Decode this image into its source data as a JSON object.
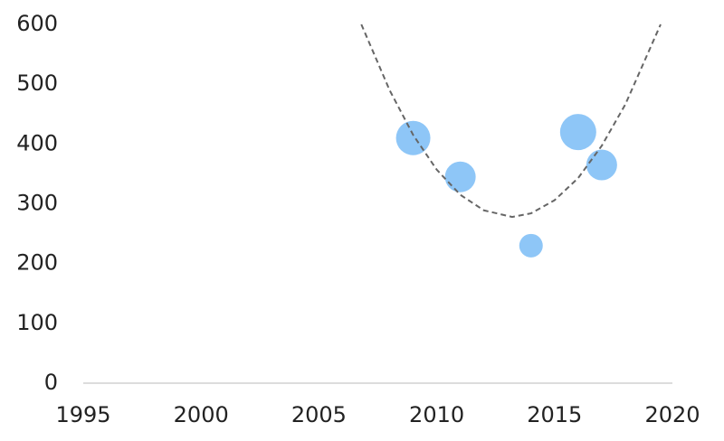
{
  "chart_data": {
    "type": "bubble",
    "series": [
      {
        "color": "#8ec6f7",
        "x": [
          2009,
          2011,
          2014,
          2016,
          2017
        ],
        "values": [
          410,
          345,
          230,
          420,
          365
        ],
        "sizes": [
          19,
          17,
          13,
          20,
          17
        ]
      }
    ],
    "trendline": {
      "style": "dashed",
      "color": "#666666",
      "x": [
        2006.8,
        2008,
        2009,
        2010,
        2011,
        2012,
        2013.2,
        2014,
        2015,
        2016,
        2017,
        2018,
        2019.5
      ],
      "values": [
        600,
        490,
        415,
        357,
        315,
        289,
        278,
        284,
        306,
        343,
        397,
        466,
        600
      ]
    },
    "xlim": [
      1995,
      2020
    ],
    "xticks": [
      1995,
      2000,
      2005,
      2010,
      2015,
      2020
    ],
    "ylim": [
      0,
      600
    ],
    "yticks": [
      0,
      100,
      200,
      300,
      400,
      500,
      600
    ],
    "grid": false
  }
}
